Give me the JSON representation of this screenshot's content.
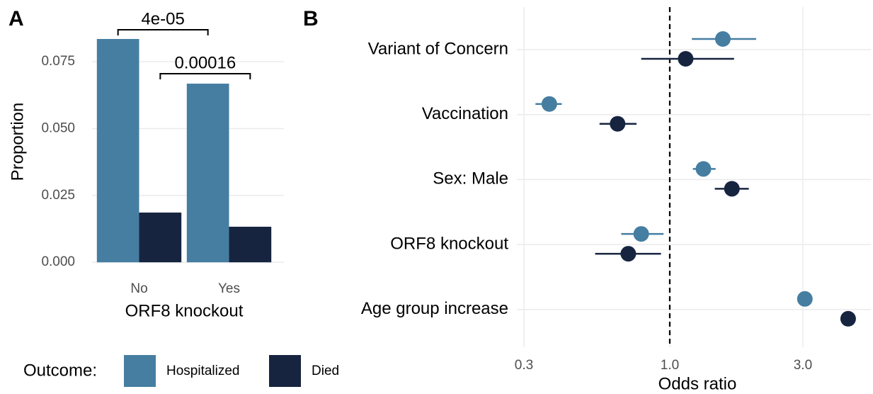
{
  "chart_data": [
    {
      "type": "bar",
      "panel_label": "A",
      "xlabel": "ORF8 knockout",
      "ylabel": "Proportion",
      "categories": [
        "No",
        "Yes"
      ],
      "series": [
        {
          "name": "Hospitalized",
          "color": "#467ea1",
          "values": [
            0.0835,
            0.0668
          ]
        },
        {
          "name": "Died",
          "color": "#172440",
          "values": [
            0.0186,
            0.0133
          ]
        }
      ],
      "annotations": [
        "4e-05",
        "0.00016"
      ],
      "legend_title": "Outcome:",
      "ylim": [
        -0.0042,
        0.0941
      ],
      "yticks": [
        {
          "value": 0,
          "label": "0.000"
        },
        {
          "value": 0.025,
          "label": "0.025"
        },
        {
          "value": 0.05,
          "label": "0.050"
        },
        {
          "value": 0.075,
          "label": "0.075"
        }
      ],
      "grid": true
    },
    {
      "type": "forest",
      "panel_label": "B",
      "xlabel": "Odds ratio",
      "log_x": true,
      "categories": [
        "Variant of Concern",
        "Vaccination",
        "Sex: Male",
        "ORF8 knockout",
        "Age group increase"
      ],
      "series": [
        {
          "color": "#467ea1",
          "values": [
            1.55,
            0.37,
            1.32,
            0.79,
            3.05
          ],
          "ci_low": [
            1.2,
            0.33,
            1.21,
            0.67,
            2.95
          ],
          "ci_high": [
            2.04,
            0.41,
            1.46,
            0.95,
            3.15
          ]
        },
        {
          "color": "#172440",
          "values": [
            1.14,
            0.65,
            1.67,
            0.71,
            4.36
          ],
          "ci_low": [
            0.79,
            0.56,
            1.45,
            0.54,
            4.2
          ],
          "ci_high": [
            1.7,
            0.76,
            1.92,
            0.93,
            4.5
          ]
        }
      ],
      "ref_line": 1,
      "xlim": [
        0.283,
        5.26
      ],
      "xticks": [
        0.3,
        {
          "value": 1,
          "label": "1.0"
        },
        {
          "value": 3,
          "label": "3.0"
        }
      ],
      "grid": true
    }
  ]
}
